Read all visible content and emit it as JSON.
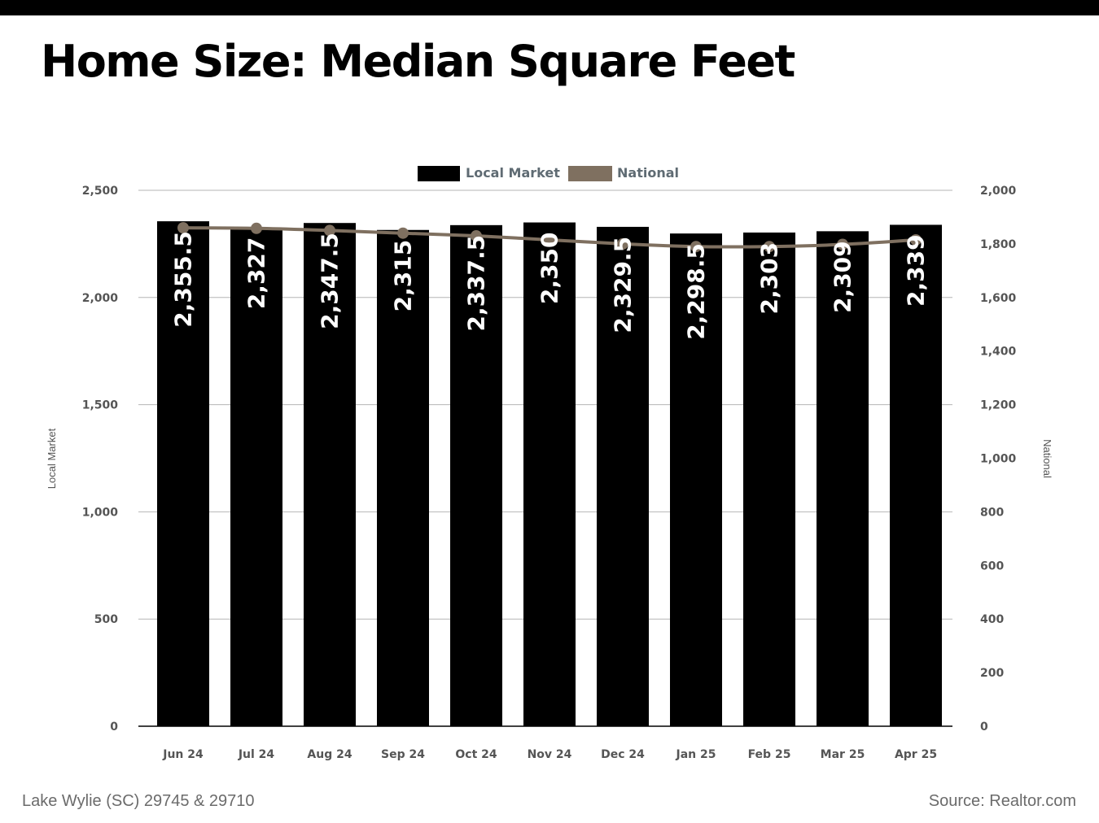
{
  "header": {
    "title": "Home Size: Median Square Feet"
  },
  "footer": {
    "location": "Lake Wylie (SC) 29745 & 29710",
    "source": "Source: Realtor.com"
  },
  "colors": {
    "bar": "#000000",
    "line": "#7f7060",
    "legend_text": "#5f6b73",
    "tick_text": "#555555"
  },
  "chart_data": {
    "type": "bar",
    "categories": [
      "Jun 24",
      "Jul 24",
      "Aug 24",
      "Sep 24",
      "Oct 24",
      "Nov 24",
      "Dec 24",
      "Jan 25",
      "Feb 25",
      "Mar 25",
      "Apr 25"
    ],
    "series": [
      {
        "name": "Local Market",
        "type": "bar",
        "axis": "left",
        "values": [
          2355.5,
          2327,
          2347.5,
          2315,
          2337.5,
          2350,
          2329.5,
          2298.5,
          2303,
          2309,
          2339
        ],
        "labels": [
          "2,355.5",
          "2,327",
          "2,347.5",
          "2,315",
          "2,337.5",
          "2,350",
          "2,329.5",
          "2,298.5",
          "2,303",
          "2,309",
          "2,339"
        ]
      },
      {
        "name": "National",
        "type": "line",
        "axis": "right",
        "values": [
          1860,
          1858,
          1850,
          1840,
          1830,
          1815,
          1800,
          1790,
          1790,
          1798,
          1815
        ]
      }
    ],
    "ylabel": "Local Market",
    "y2label": "National",
    "ylim": [
      0,
      2500
    ],
    "y2lim": [
      0,
      2000
    ],
    "yticks": [
      "0",
      "500",
      "1,000",
      "1,500",
      "2,000",
      "2,500"
    ],
    "y2ticks": [
      "0",
      "200",
      "400",
      "600",
      "800",
      "1,000",
      "1,200",
      "1,400",
      "1,600",
      "1,800",
      "2,000"
    ],
    "grid": true,
    "legend_position": "top-center"
  }
}
